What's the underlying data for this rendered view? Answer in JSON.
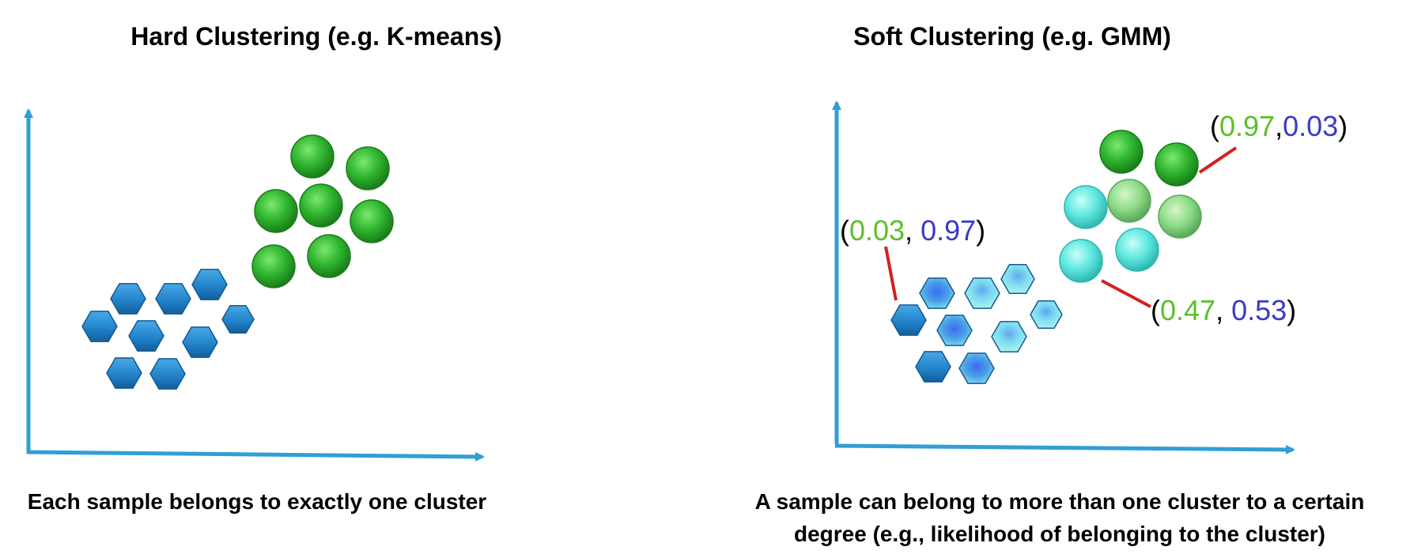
{
  "hard": {
    "title": "Hard Clustering (e.g. K-means)",
    "caption": "Each sample belongs to exactly one cluster"
  },
  "soft": {
    "title": "Soft Clustering (e.g. GMM)",
    "caption_line1": "A sample can belong to more than one cluster to a certain",
    "caption_line2": "degree (e.g., likelihood of belonging to the cluster)",
    "annotations": [
      {
        "id": "a1",
        "green": "0.97",
        "sep": ",",
        "blue": "0.03"
      },
      {
        "id": "a2",
        "green": "0.03",
        "sep": ", ",
        "blue": "0.97"
      },
      {
        "id": "a3",
        "green": "0.47",
        "sep": ", ",
        "blue": "0.53"
      }
    ]
  },
  "colors": {
    "axis": "#2f9fd6",
    "green_cluster": "#2fb52f",
    "blue_cluster": "#1f80c8",
    "mixed": "#5ee8e0",
    "label_green": "#5cbf2a",
    "label_blue": "#3a3ac8",
    "leader_line": "#d42020"
  }
}
